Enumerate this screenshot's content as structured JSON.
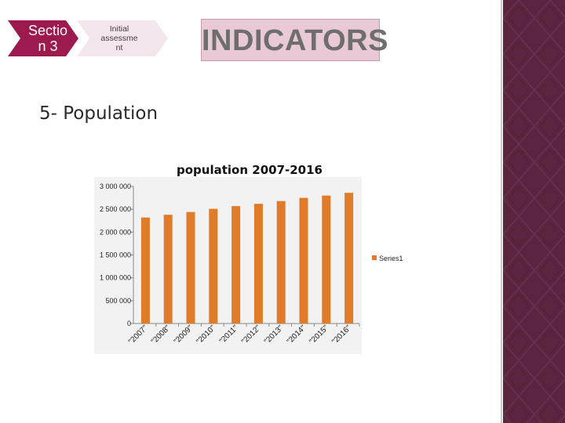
{
  "nav": {
    "section_label": "Sectio n 3",
    "section_line1": "Sectio",
    "section_line2": "n 3",
    "step_line1": "Initial",
    "step_line2": "assessme",
    "step_line3": "nt",
    "section_color": "#9d1a4e",
    "step_color": "#f3e6ec"
  },
  "slide": {
    "title": "INDICATORS",
    "heading": "5- Population"
  },
  "chart_data": {
    "type": "bar",
    "title": "population 2007-2016",
    "categories": [
      "\"2007\"",
      "\"2008\"",
      "\"2009\"",
      "\"2010\"",
      "\"2011\"",
      "\"2012\"",
      "\"2013\"",
      "\"2014\"",
      "\"2015\"",
      "\"2016\""
    ],
    "series": [
      {
        "name": "Series1",
        "values": [
          2320000,
          2380000,
          2440000,
          2510000,
          2570000,
          2620000,
          2680000,
          2750000,
          2800000,
          2860000
        ],
        "color": "#e07b2a"
      }
    ],
    "y_tick_labels": [
      "0",
      "500 000",
      "1 000 000",
      "1 500 000",
      "2 000 000",
      "2 500 000",
      "3 000 000"
    ],
    "y_ticks": [
      0,
      500000,
      1000000,
      1500000,
      2000000,
      2500000,
      3000000
    ],
    "ylim": [
      0,
      3000000
    ],
    "legend_position": "right",
    "grid": false
  }
}
